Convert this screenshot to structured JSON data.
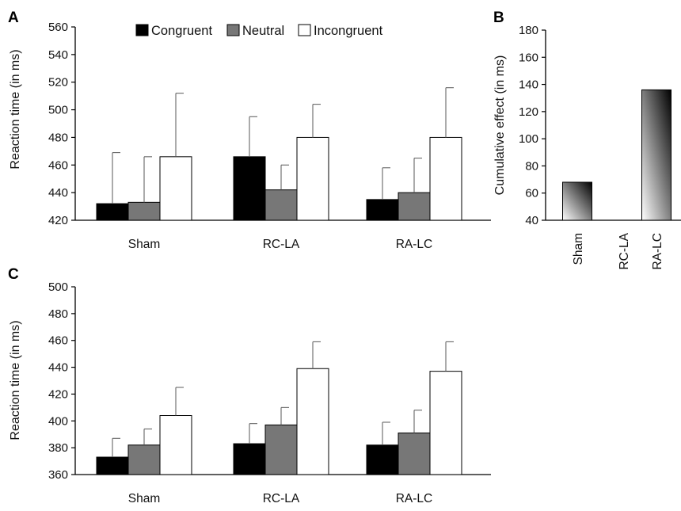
{
  "figure": {
    "colors": {
      "congruent": "#000000",
      "neutral": "#777777",
      "incongruent": "#ffffff",
      "axis": "#000000",
      "error_bar": "#666666"
    },
    "legend": {
      "position": "top-center of panel A",
      "items": [
        {
          "label": "Congruent",
          "color": "#000000"
        },
        {
          "label": "Neutral",
          "color": "#777777"
        },
        {
          "label": "Incongruent",
          "color": "#ffffff"
        }
      ]
    }
  },
  "chart_data": [
    {
      "panel_label": "A",
      "type": "bar",
      "ylabel": "Reaction time (in ms)",
      "xlabel": "",
      "ylim": [
        420,
        560
      ],
      "yticks": [
        420,
        440,
        460,
        480,
        500,
        520,
        540,
        560
      ],
      "grid": false,
      "categories": [
        "Sham",
        "RC-LA",
        "RA-LC"
      ],
      "series": [
        {
          "name": "Congruent",
          "values": [
            432,
            466,
            435
          ],
          "errors": [
            37,
            29,
            23
          ]
        },
        {
          "name": "Neutral",
          "values": [
            433,
            442,
            440
          ],
          "errors": [
            33,
            18,
            25
          ]
        },
        {
          "name": "Incongruent",
          "values": [
            466,
            480,
            480
          ],
          "errors": [
            46,
            24,
            36
          ]
        }
      ]
    },
    {
      "panel_label": "B",
      "type": "bar",
      "ylabel": "Cumulative effect (in ms)",
      "xlabel": "",
      "ylim": [
        40,
        180
      ],
      "yticks": [
        40,
        60,
        80,
        100,
        120,
        140,
        160,
        180
      ],
      "grid": false,
      "categories": [
        "Sham",
        "RC-LA",
        "RA-LC"
      ],
      "values": [
        68,
        40,
        136
      ],
      "fill": "gradient black to white"
    },
    {
      "panel_label": "C",
      "type": "bar",
      "ylabel": "Reaction time (in ms)",
      "xlabel": "",
      "ylim": [
        360,
        500
      ],
      "yticks": [
        360,
        380,
        400,
        420,
        440,
        460,
        480,
        500
      ],
      "grid": false,
      "categories": [
        "Sham",
        "RC-LA",
        "RA-LC"
      ],
      "series": [
        {
          "name": "Congruent",
          "values": [
            373,
            383,
            382
          ],
          "errors": [
            14,
            15,
            17
          ]
        },
        {
          "name": "Neutral",
          "values": [
            382,
            397,
            391
          ],
          "errors": [
            12,
            13,
            17
          ]
        },
        {
          "name": "Incongruent",
          "values": [
            404,
            439,
            437
          ],
          "errors": [
            21,
            20,
            22
          ]
        }
      ]
    }
  ]
}
